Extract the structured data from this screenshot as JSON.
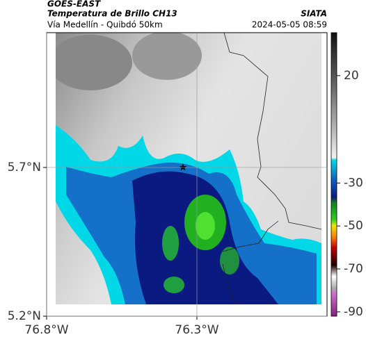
{
  "header": {
    "satellite": "GOES-EAST",
    "title": "Temperatura de Brillo CH13",
    "subtitle": "Vía Medellín - Quibdó 50km",
    "source": "SIATA",
    "datetime": "2024-05-05 08:59"
  },
  "map": {
    "xlim": [
      -76.8,
      -75.867
    ],
    "ylim": [
      5.2,
      6.153
    ],
    "xticks": [
      {
        "value": -76.8,
        "label": "76.8°W"
      },
      {
        "value": -76.3,
        "label": "76.3°W"
      }
    ],
    "yticks": [
      {
        "value": 5.7,
        "label": "5.7°N"
      },
      {
        "value": 5.2,
        "label": "5.2°N"
      }
    ]
  },
  "colorbar": {
    "lim": [
      -92,
      40
    ],
    "ticks": [
      20,
      -30,
      -50,
      -70,
      -90
    ]
  }
}
